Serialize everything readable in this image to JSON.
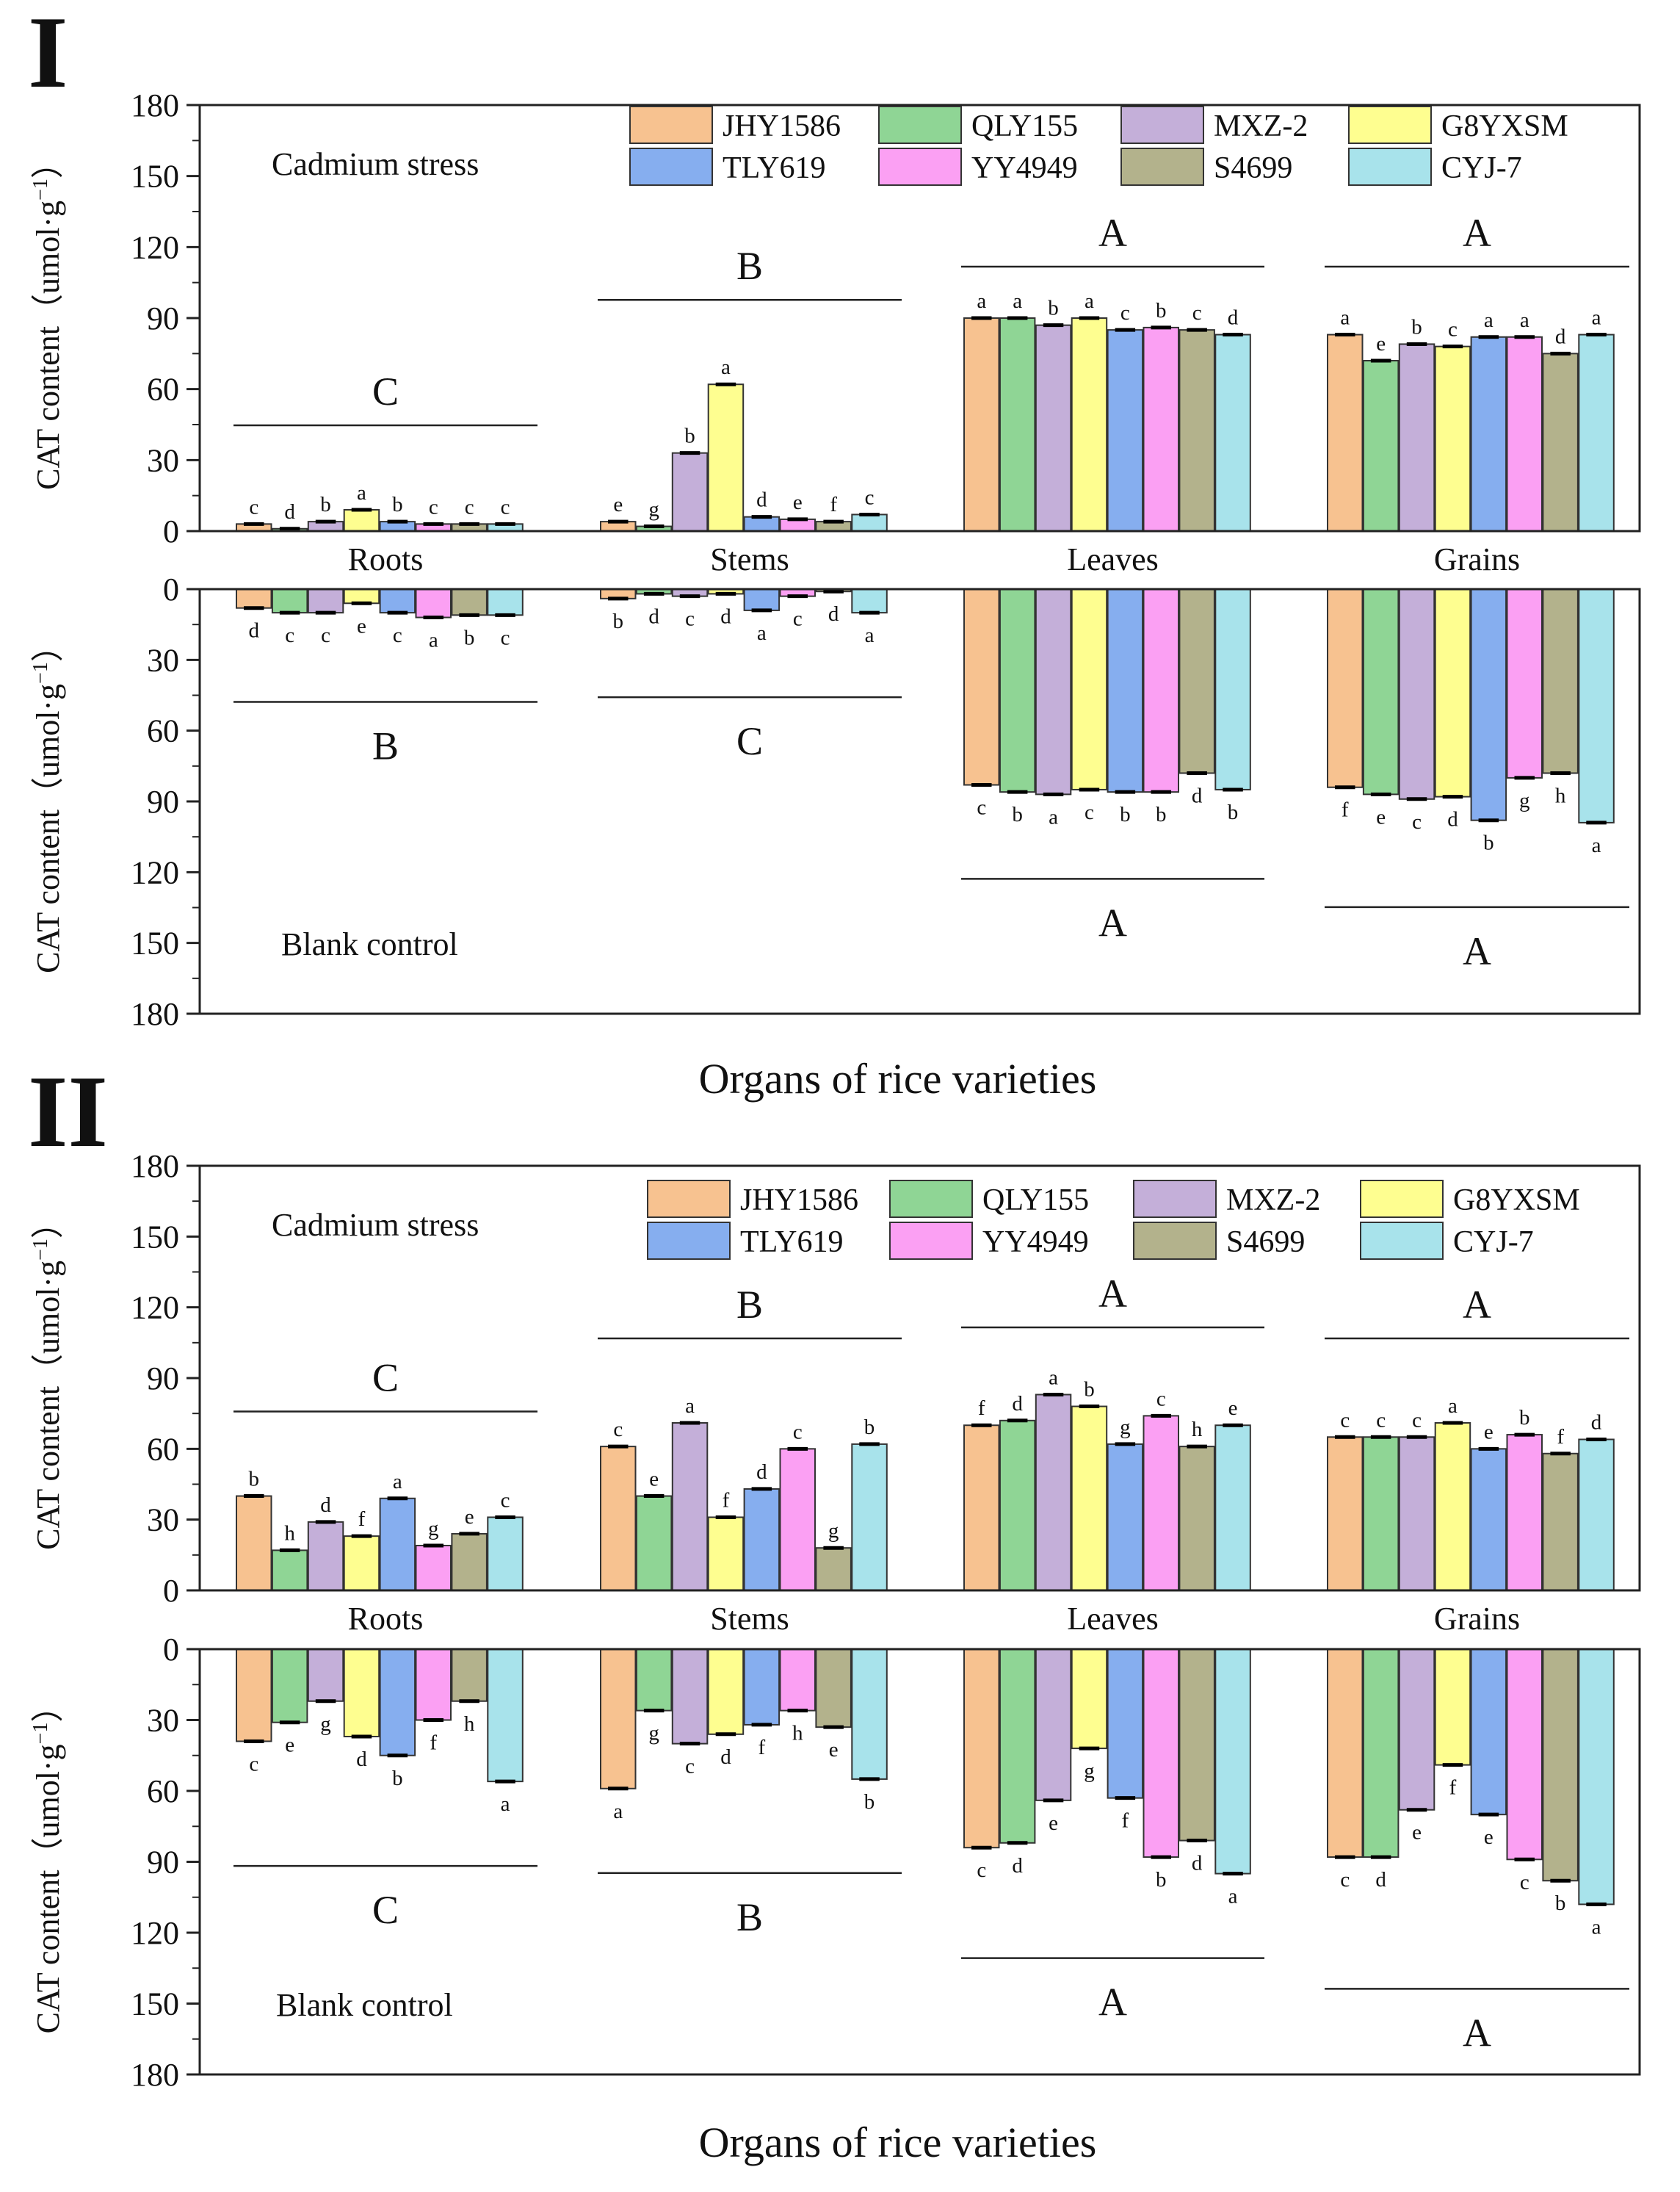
{
  "varieties": [
    "JHY1586",
    "QLY155",
    "MXZ-2",
    "G8YXSM",
    "TLY619",
    "YY4949",
    "S4699",
    "CYJ-7"
  ],
  "colors": [
    "#f7c290",
    "#8fd595",
    "#c4afd9",
    "#fefe90",
    "#86aeef",
    "#fba0f3",
    "#b3b28c",
    "#a8e3eb"
  ],
  "organs": [
    "Roots",
    "Stems",
    "Leaves",
    "Grains"
  ],
  "labels": {
    "ylabel": "CAT content（umol·g",
    "ylabel_exp": "−1",
    "ylabel_close": "）",
    "stress": "Cadmium stress",
    "control": "Blank control",
    "xtitle": "Organs of rice varieties"
  },
  "chart_data": [
    {
      "type": "bar",
      "panel": "I",
      "ylim": [
        0,
        180
      ],
      "yticks": [
        "0",
        "30",
        "60",
        "90",
        "120",
        "150",
        "180"
      ],
      "categories": [
        "Roots",
        "Stems",
        "Leaves",
        "Grains"
      ],
      "stress": {
        "values": [
          [
            3,
            1,
            4,
            9,
            4,
            3,
            3,
            3
          ],
          [
            4,
            2,
            33,
            62,
            6,
            5,
            4,
            7
          ],
          [
            90,
            90,
            87,
            90,
            85,
            86,
            85,
            83
          ],
          [
            83,
            72,
            79,
            78,
            82,
            82,
            75,
            83
          ]
        ],
        "letters": [
          [
            "c",
            "d",
            "b",
            "a",
            "b",
            "c",
            "c",
            "c"
          ],
          [
            "e",
            "g",
            "b",
            "a",
            "d",
            "e",
            "f",
            "c"
          ],
          [
            "a",
            "a",
            "b",
            "a",
            "c",
            "b",
            "c",
            "d"
          ],
          [
            "a",
            "e",
            "b",
            "c",
            "a",
            "a",
            "d",
            "a"
          ]
        ],
        "group_letters": [
          "C",
          "B",
          "A",
          "A"
        ]
      },
      "control": {
        "values": [
          [
            8,
            10,
            10,
            6,
            10,
            12,
            11,
            11
          ],
          [
            4,
            2,
            3,
            2,
            9,
            3,
            1,
            10
          ],
          [
            83,
            86,
            87,
            85,
            86,
            86,
            78,
            85
          ],
          [
            84,
            87,
            89,
            88,
            98,
            80,
            78,
            99
          ]
        ],
        "letters": [
          [
            "d",
            "c",
            "c",
            "e",
            "c",
            "a",
            "b",
            "c"
          ],
          [
            "b",
            "d",
            "c",
            "d",
            "a",
            "c",
            "d",
            "a"
          ],
          [
            "c",
            "b",
            "a",
            "c",
            "b",
            "b",
            "d",
            "b"
          ],
          [
            "f",
            "e",
            "c",
            "d",
            "b",
            "g",
            "h",
            "a"
          ]
        ],
        "group_letters": [
          "B",
          "C",
          "A",
          "A"
        ]
      }
    },
    {
      "type": "bar",
      "panel": "II",
      "ylim": [
        0,
        180
      ],
      "yticks": [
        "0",
        "30",
        "60",
        "90",
        "120",
        "150",
        "180"
      ],
      "categories": [
        "Roots",
        "Stems",
        "Leaves",
        "Grains"
      ],
      "stress": {
        "values": [
          [
            40,
            17,
            29,
            23,
            39,
            19,
            24,
            31
          ],
          [
            61,
            40,
            71,
            31,
            43,
            60,
            18,
            62
          ],
          [
            70,
            72,
            83,
            78,
            62,
            74,
            61,
            70
          ],
          [
            65,
            65,
            65,
            71,
            60,
            66,
            58,
            64
          ]
        ],
        "letters": [
          [
            "b",
            "h",
            "d",
            "f",
            "a",
            "g",
            "e",
            "c"
          ],
          [
            "c",
            "e",
            "a",
            "f",
            "d",
            "c",
            "g",
            "b"
          ],
          [
            "f",
            "d",
            "a",
            "b",
            "g",
            "c",
            "h",
            "e"
          ],
          [
            "c",
            "c",
            "c",
            "a",
            "e",
            "b",
            "f",
            "d"
          ]
        ],
        "group_letters": [
          "C",
          "B",
          "A",
          "A"
        ]
      },
      "control": {
        "values": [
          [
            39,
            31,
            22,
            37,
            45,
            30,
            22,
            56
          ],
          [
            59,
            26,
            40,
            36,
            32,
            26,
            33,
            55
          ],
          [
            84,
            82,
            64,
            42,
            63,
            88,
            81,
            95
          ],
          [
            88,
            88,
            68,
            49,
            70,
            89,
            98,
            108
          ]
        ],
        "letters": [
          [
            "c",
            "e",
            "g",
            "d",
            "b",
            "f",
            "h",
            "a"
          ],
          [
            "a",
            "g",
            "c",
            "d",
            "f",
            "h",
            "e",
            "b"
          ],
          [
            "c",
            "d",
            "e",
            "g",
            "f",
            "b",
            "d",
            "a"
          ],
          [
            "c",
            "d",
            "e",
            "f",
            "e",
            "c",
            "b",
            "a"
          ]
        ],
        "group_letters": [
          "C",
          "B",
          "A",
          "A"
        ]
      }
    }
  ]
}
